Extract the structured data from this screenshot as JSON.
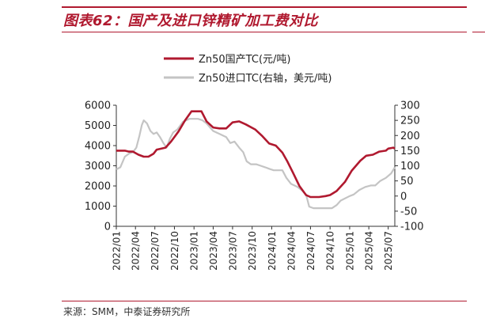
{
  "figure": {
    "title": "图表62：国产及进口锌精矿加工费对比",
    "source": "来源：SMM，中泰证券研究所"
  },
  "chart_data": {
    "type": "line",
    "xlabel": "",
    "ylabel": "",
    "y2label": "",
    "x_ticks": [
      "2022/01",
      "2022/04",
      "2022/07",
      "2022/10",
      "2023/01",
      "2023/04",
      "2023/07",
      "2023/10",
      "2024/01",
      "2024/04",
      "2024/07",
      "2024/10",
      "2025/01",
      "2025/04",
      "2025/07"
    ],
    "x_range": [
      "2022/01",
      "2025/08"
    ],
    "ylim_left": [
      0,
      6000
    ],
    "yticks_left": [
      0,
      1000,
      2000,
      3000,
      4000,
      5000,
      6000
    ],
    "ylim_right": [
      -100,
      300
    ],
    "yticks_right": [
      -100,
      -50,
      0,
      50,
      100,
      150,
      200,
      250,
      300
    ],
    "ytick_labels_right": [
      "-100",
      "-50",
      "0",
      "50",
      "100",
      "150",
      "200",
      "250",
      "300"
    ],
    "legend_position": "top-center",
    "grid": false,
    "series": [
      {
        "name": "Zn50国产TC(元/吨)",
        "axis": "left",
        "color": "#b0192f",
        "points": [
          [
            "2022/01/01",
            3750
          ],
          [
            "2022/02/10",
            3750
          ],
          [
            "2022/03/01",
            3700
          ],
          [
            "2022/03/20",
            3700
          ],
          [
            "2022/04/15",
            3550
          ],
          [
            "2022/05/10",
            3450
          ],
          [
            "2022/06/01",
            3450
          ],
          [
            "2022/06/25",
            3600
          ],
          [
            "2022/07/10",
            3800
          ],
          [
            "2022/08/20",
            3900
          ],
          [
            "2022/09/15",
            4200
          ],
          [
            "2022/10/20",
            4700
          ],
          [
            "2022/11/20",
            5250
          ],
          [
            "2022/12/20",
            5700
          ],
          [
            "2023/01/10",
            5700
          ],
          [
            "2023/02/05",
            5700
          ],
          [
            "2023/03/01",
            5200
          ],
          [
            "2023/04/01",
            4900
          ],
          [
            "2023/05/01",
            4850
          ],
          [
            "2023/06/01",
            4850
          ],
          [
            "2023/07/01",
            5150
          ],
          [
            "2023/08/01",
            5200
          ],
          [
            "2023/09/01",
            5050
          ],
          [
            "2023/10/15",
            4800
          ],
          [
            "2023/11/15",
            4500
          ],
          [
            "2023/12/20",
            4100
          ],
          [
            "2024/01/20",
            4000
          ],
          [
            "2024/02/20",
            3650
          ],
          [
            "2024/03/15",
            3200
          ],
          [
            "2024/04/10",
            2650
          ],
          [
            "2024/05/10",
            2000
          ],
          [
            "2024/06/10",
            1550
          ],
          [
            "2024/07/01",
            1450
          ],
          [
            "2024/08/10",
            1450
          ],
          [
            "2024/09/10",
            1500
          ],
          [
            "2024/10/01",
            1550
          ],
          [
            "2024/11/01",
            1750
          ],
          [
            "2024/12/10",
            2200
          ],
          [
            "2025/01/10",
            2750
          ],
          [
            "2025/02/20",
            3250
          ],
          [
            "2025/03/20",
            3500
          ],
          [
            "2025/04/20",
            3550
          ],
          [
            "2025/05/20",
            3700
          ],
          [
            "2025/06/20",
            3750
          ],
          [
            "2025/07/01",
            3850
          ],
          [
            "2025/07/25",
            3900
          ],
          [
            "2025/08/01",
            3850
          ]
        ]
      },
      {
        "name": "Zn50进口TC(右轴，美元/吨)",
        "axis": "right",
        "color": "#c4c4c4",
        "points": [
          [
            "2022/01/01",
            88
          ],
          [
            "2022/01/20",
            95
          ],
          [
            "2022/02/10",
            130
          ],
          [
            "2022/03/01",
            140
          ],
          [
            "2022/03/20",
            145
          ],
          [
            "2022/04/05",
            160
          ],
          [
            "2022/04/20",
            200
          ],
          [
            "2022/05/01",
            235
          ],
          [
            "2022/05/10",
            250
          ],
          [
            "2022/05/25",
            240
          ],
          [
            "2022/06/10",
            215
          ],
          [
            "2022/06/25",
            205
          ],
          [
            "2022/07/10",
            210
          ],
          [
            "2022/07/25",
            195
          ],
          [
            "2022/08/10",
            175
          ],
          [
            "2022/08/25",
            160
          ],
          [
            "2022/09/10",
            190
          ],
          [
            "2022/09/25",
            210
          ],
          [
            "2022/10/15",
            220
          ],
          [
            "2022/11/10",
            245
          ],
          [
            "2022/12/10",
            255
          ],
          [
            "2023/01/01",
            255
          ],
          [
            "2023/01/20",
            255
          ],
          [
            "2023/02/10",
            250
          ],
          [
            "2023/03/01",
            240
          ],
          [
            "2023/04/01",
            215
          ],
          [
            "2023/05/01",
            205
          ],
          [
            "2023/06/01",
            195
          ],
          [
            "2023/06/20",
            175
          ],
          [
            "2023/07/10",
            180
          ],
          [
            "2023/08/01",
            160
          ],
          [
            "2023/08/20",
            145
          ],
          [
            "2023/09/05",
            115
          ],
          [
            "2023/09/25",
            105
          ],
          [
            "2023/10/20",
            105
          ],
          [
            "2023/11/10",
            100
          ],
          [
            "2023/12/01",
            95
          ],
          [
            "2023/12/20",
            90
          ],
          [
            "2024/01/10",
            85
          ],
          [
            "2024/02/20",
            85
          ],
          [
            "2024/03/10",
            60
          ],
          [
            "2024/04/01",
            40
          ],
          [
            "2024/05/01",
            30
          ],
          [
            "2024/05/20",
            20
          ],
          [
            "2024/06/10",
            5
          ],
          [
            "2024/06/25",
            -35
          ],
          [
            "2024/07/15",
            -40
          ],
          [
            "2024/08/20",
            -40
          ],
          [
            "2024/09/20",
            -40
          ],
          [
            "2024/10/10",
            -40
          ],
          [
            "2024/11/01",
            -30
          ],
          [
            "2024/11/20",
            -15
          ],
          [
            "2025/01/01",
            0
          ],
          [
            "2025/01/20",
            5
          ],
          [
            "2025/02/15",
            20
          ],
          [
            "2025/03/15",
            30
          ],
          [
            "2025/04/10",
            35
          ],
          [
            "2025/05/01",
            35
          ],
          [
            "2025/05/25",
            50
          ],
          [
            "2025/06/20",
            60
          ],
          [
            "2025/07/15",
            75
          ],
          [
            "2025/08/01",
            95
          ]
        ]
      }
    ]
  }
}
